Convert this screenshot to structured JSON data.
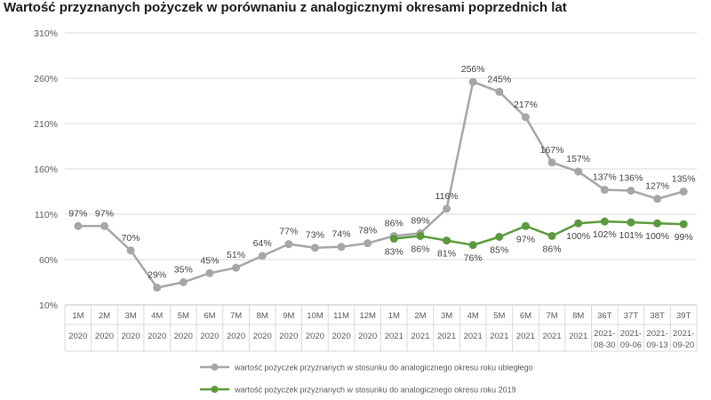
{
  "title": "Wartość przyznanych pożyczek w porównaniu z analogicznymi okresami poprzednich lat",
  "chart_data": {
    "type": "line",
    "title": "Wartość przyznanych pożyczek w porównaniu z analogicznymi okresami poprzednich lat",
    "xlabel": "",
    "ylabel": "",
    "ylim": [
      10,
      310
    ],
    "yticks": [
      "10%",
      "60%",
      "110%",
      "160%",
      "210%",
      "260%",
      "310%"
    ],
    "grid": true,
    "legend_position": "bottom",
    "categories": [
      [
        "1M",
        "2020"
      ],
      [
        "2M",
        "2020"
      ],
      [
        "3M",
        "2020"
      ],
      [
        "4M",
        "2020"
      ],
      [
        "5M",
        "2020"
      ],
      [
        "6M",
        "2020"
      ],
      [
        "7M",
        "2020"
      ],
      [
        "8M",
        "2020"
      ],
      [
        "9M",
        "2020"
      ],
      [
        "10M",
        "2020"
      ],
      [
        "11M",
        "2020"
      ],
      [
        "12M",
        "2020"
      ],
      [
        "1M",
        "2021"
      ],
      [
        "2M",
        "2021"
      ],
      [
        "3M",
        "2021"
      ],
      [
        "4M",
        "2021"
      ],
      [
        "5M",
        "2021"
      ],
      [
        "6M",
        "2021"
      ],
      [
        "7M",
        "2021"
      ],
      [
        "8M",
        "2021"
      ],
      [
        "36T",
        "2021-",
        "08-30"
      ],
      [
        "37T",
        "2021-",
        "09-06"
      ],
      [
        "38T",
        "2021-",
        "09-13"
      ],
      [
        "39T",
        "2021-",
        "09-20"
      ]
    ],
    "series": [
      {
        "name": "wartość pożyczek przyznanych w stosunku do analogicznego okresu roku ubiegłego",
        "color": "#a6a6a6",
        "values": [
          97,
          97,
          70,
          29,
          35,
          45,
          51,
          64,
          77,
          73,
          74,
          78,
          86,
          89,
          116,
          256,
          245,
          217,
          167,
          157,
          137,
          136,
          127,
          135
        ]
      },
      {
        "name": "wartość pożyczek przyznanych w stosunku do analogicznego okresu roku 2019",
        "color": "#5b9a3c",
        "values": [
          null,
          null,
          null,
          null,
          null,
          null,
          null,
          null,
          null,
          null,
          null,
          null,
          83,
          86,
          81,
          76,
          85,
          97,
          86,
          100,
          102,
          101,
          100,
          99
        ]
      }
    ]
  }
}
